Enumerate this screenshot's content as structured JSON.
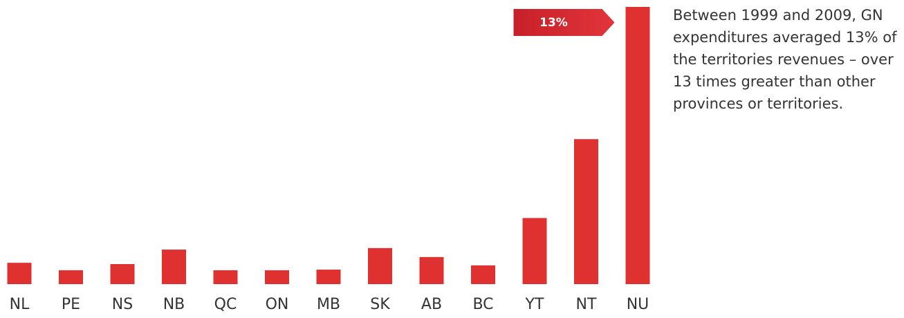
{
  "chart_data": {
    "type": "bar",
    "annotation": "Between 1999 and 2009, GN expenditures averaged 13% of the territories revenues – over 13 times greater than other provinces or territories.",
    "categories": [
      "NL",
      "PE",
      "NS",
      "NB",
      "QC",
      "ON",
      "MB",
      "SK",
      "AB",
      "BC",
      "YT",
      "NT",
      "NU"
    ],
    "values": [
      1.0,
      0.65,
      0.94,
      1.62,
      0.65,
      0.65,
      0.68,
      1.69,
      1.27,
      0.88,
      3.1,
      6.8,
      13
    ],
    "value_labels": [
      null,
      null,
      null,
      null,
      null,
      null,
      null,
      null,
      null,
      null,
      null,
      null,
      "13%"
    ],
    "color": "#e03131"
  }
}
